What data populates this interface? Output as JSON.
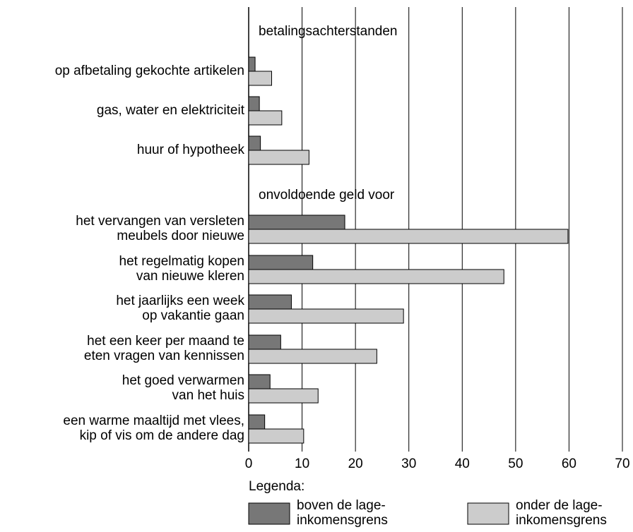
{
  "chart_data": {
    "type": "bar",
    "orientation": "horizontal",
    "annotations": [
      "betalingsachterstanden",
      "onvoldoende geld voor"
    ],
    "categories": [
      "op afbetaling gekochte artikelen",
      "gas, water en elektriciteit",
      "huur of hypotheek",
      "het vervangen van versleten\nmeubels door nieuwe",
      "het regelmatig kopen\nvan nieuwe kleren",
      "het jaarlijks een week\nop vakantie gaan",
      "het een keer per maand te\neten vragen van kennissen",
      "het goed verwarmen\nvan het huis",
      "een warme maaltijd met vlees,\nkip of vis om de andere dag"
    ],
    "series": [
      {
        "name": "boven de lage-\ninkomensgrens",
        "color": "#777777",
        "values": [
          1.2,
          2,
          2.2,
          18,
          12,
          8,
          6,
          4,
          3
        ]
      },
      {
        "name": "onder de lage-\ninkomensgrens",
        "color": "#cccccc",
        "values": [
          4.3,
          6.2,
          11.3,
          59.8,
          47.8,
          29,
          24,
          13,
          10.3
        ]
      }
    ],
    "xlim": [
      0,
      70
    ],
    "xticks": [
      0,
      10,
      20,
      30,
      40,
      50,
      60,
      70
    ],
    "grid": true,
    "legend_title": "Legenda:"
  }
}
